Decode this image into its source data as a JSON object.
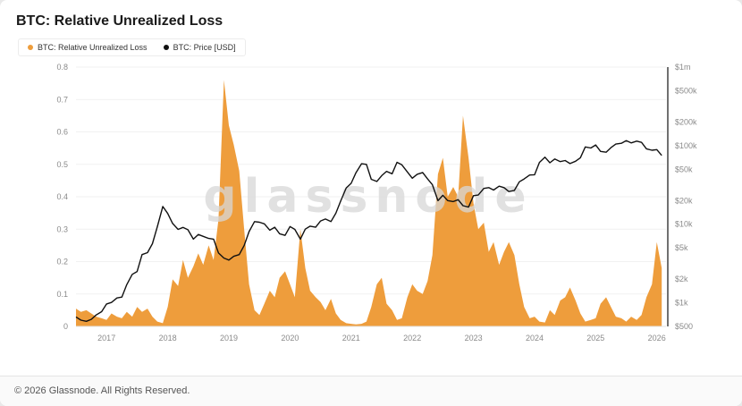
{
  "header": {
    "title": "BTC: Relative Unrealized Loss"
  },
  "legend": {
    "items": [
      {
        "label": "BTC: Relative Unrealized Loss",
        "color": "#EE9D3C"
      },
      {
        "label": "BTC: Price [USD]",
        "color": "#111111"
      }
    ]
  },
  "watermark": {
    "text": "glassnode"
  },
  "footer": {
    "copyright": "© 2026 Glassnode. All Rights Reserved."
  },
  "colors": {
    "area": "#EE9D3C",
    "line": "#111111",
    "grid": "#f1f1f1",
    "axis_line": "#111111",
    "axis_text": "#8a8a8a"
  },
  "chart_data": {
    "type": "area",
    "title": "BTC: Relative Unrealized Loss",
    "x_range": [
      2016.5,
      2026.15
    ],
    "x_ticks": [
      2017,
      2018,
      2019,
      2020,
      2021,
      2022,
      2023,
      2024,
      2025,
      2026
    ],
    "left_axis": {
      "name": "BTC: Relative Unrealized Loss",
      "scale": "linear",
      "min": 0,
      "max": 0.8,
      "ticks": [
        {
          "value": 0,
          "label": "0"
        },
        {
          "value": 0.1,
          "label": "0.1"
        },
        {
          "value": 0.2,
          "label": "0.2"
        },
        {
          "value": 0.3,
          "label": "0.3"
        },
        {
          "value": 0.4,
          "label": "0.4"
        },
        {
          "value": 0.5,
          "label": "0.5"
        },
        {
          "value": 0.6,
          "label": "0.6"
        },
        {
          "value": 0.7,
          "label": "0.7"
        },
        {
          "value": 0.8,
          "label": "0.8"
        }
      ]
    },
    "right_axis": {
      "name": "BTC: Price [USD]",
      "scale": "log",
      "min": 500,
      "max": 1000000,
      "ticks": [
        {
          "value": 1000000,
          "label": "$1m"
        },
        {
          "value": 500000,
          "label": "$500k"
        },
        {
          "value": 200000,
          "label": "$200k"
        },
        {
          "value": 100000,
          "label": "$100k"
        },
        {
          "value": 50000,
          "label": "$50k"
        },
        {
          "value": 20000,
          "label": "$20k"
        },
        {
          "value": 10000,
          "label": "$10k"
        },
        {
          "value": 5000,
          "label": "$5k"
        },
        {
          "value": 2000,
          "label": "$2k"
        },
        {
          "value": 1000,
          "label": "$1k"
        },
        {
          "value": 500,
          "label": "$500"
        }
      ]
    },
    "series": [
      {
        "name": "BTC: Relative Unrealized Loss",
        "type": "area",
        "axis": "left",
        "color": "#EE9D3C"
      },
      {
        "name": "BTC: Price [USD]",
        "type": "line",
        "axis": "right",
        "color": "#111111"
      }
    ],
    "point_format": [
      "year_fraction",
      "relative_unrealized_loss",
      "price_usd"
    ],
    "points": [
      [
        2016.5,
        0.055,
        660
      ],
      [
        2016.58,
        0.045,
        600
      ],
      [
        2016.67,
        0.05,
        580
      ],
      [
        2016.75,
        0.04,
        615
      ],
      [
        2016.83,
        0.03,
        700
      ],
      [
        2016.92,
        0.025,
        770
      ],
      [
        2017.0,
        0.02,
        965
      ],
      [
        2017.08,
        0.04,
        1010
      ],
      [
        2017.17,
        0.03,
        1150
      ],
      [
        2017.25,
        0.025,
        1180
      ],
      [
        2017.33,
        0.045,
        1700
      ],
      [
        2017.42,
        0.03,
        2300
      ],
      [
        2017.5,
        0.06,
        2500
      ],
      [
        2017.58,
        0.045,
        4100
      ],
      [
        2017.67,
        0.055,
        4350
      ],
      [
        2017.75,
        0.03,
        5650
      ],
      [
        2017.83,
        0.015,
        9300
      ],
      [
        2017.92,
        0.01,
        16800
      ],
      [
        2018.0,
        0.06,
        13700
      ],
      [
        2018.08,
        0.145,
        10200
      ],
      [
        2018.17,
        0.125,
        8600
      ],
      [
        2018.25,
        0.205,
        9100
      ],
      [
        2018.33,
        0.15,
        8500
      ],
      [
        2018.42,
        0.185,
        6450
      ],
      [
        2018.5,
        0.225,
        7400
      ],
      [
        2018.58,
        0.19,
        7000
      ],
      [
        2018.67,
        0.25,
        6600
      ],
      [
        2018.75,
        0.205,
        6450
      ],
      [
        2018.83,
        0.33,
        4300
      ],
      [
        2018.92,
        0.76,
        3700
      ],
      [
        2019.0,
        0.62,
        3500
      ],
      [
        2019.08,
        0.56,
        3900
      ],
      [
        2019.17,
        0.48,
        4100
      ],
      [
        2019.25,
        0.3,
        5350
      ],
      [
        2019.33,
        0.13,
        8050
      ],
      [
        2019.42,
        0.05,
        10800
      ],
      [
        2019.5,
        0.035,
        10600
      ],
      [
        2019.58,
        0.07,
        10100
      ],
      [
        2019.67,
        0.11,
        8400
      ],
      [
        2019.75,
        0.09,
        9150
      ],
      [
        2019.83,
        0.15,
        7550
      ],
      [
        2019.92,
        0.17,
        7200
      ],
      [
        2020.0,
        0.13,
        9350
      ],
      [
        2020.08,
        0.09,
        8600
      ],
      [
        2020.17,
        0.3,
        6450
      ],
      [
        2020.25,
        0.18,
        8650
      ],
      [
        2020.33,
        0.11,
        9450
      ],
      [
        2020.42,
        0.09,
        9150
      ],
      [
        2020.5,
        0.075,
        11000
      ],
      [
        2020.58,
        0.05,
        11650
      ],
      [
        2020.67,
        0.085,
        10800
      ],
      [
        2020.75,
        0.04,
        13800
      ],
      [
        2020.83,
        0.02,
        19700
      ],
      [
        2020.92,
        0.01,
        29000
      ],
      [
        2021.0,
        0.008,
        33100
      ],
      [
        2021.08,
        0.006,
        45200
      ],
      [
        2021.17,
        0.008,
        58800
      ],
      [
        2021.25,
        0.015,
        57800
      ],
      [
        2021.33,
        0.06,
        37300
      ],
      [
        2021.42,
        0.13,
        35000
      ],
      [
        2021.5,
        0.15,
        41500
      ],
      [
        2021.58,
        0.07,
        47100
      ],
      [
        2021.67,
        0.05,
        43800
      ],
      [
        2021.75,
        0.02,
        61300
      ],
      [
        2021.83,
        0.025,
        57000
      ],
      [
        2021.92,
        0.09,
        46200
      ],
      [
        2022.0,
        0.13,
        38500
      ],
      [
        2022.08,
        0.11,
        43200
      ],
      [
        2022.17,
        0.1,
        45500
      ],
      [
        2022.25,
        0.14,
        37700
      ],
      [
        2022.33,
        0.22,
        31800
      ],
      [
        2022.42,
        0.47,
        19900
      ],
      [
        2022.5,
        0.52,
        23300
      ],
      [
        2022.58,
        0.4,
        20000
      ],
      [
        2022.67,
        0.43,
        19400
      ],
      [
        2022.75,
        0.4,
        20500
      ],
      [
        2022.83,
        0.65,
        17200
      ],
      [
        2022.92,
        0.52,
        16500
      ],
      [
        2023.0,
        0.38,
        23100
      ],
      [
        2023.08,
        0.3,
        23500
      ],
      [
        2023.17,
        0.32,
        28500
      ],
      [
        2023.25,
        0.23,
        29250
      ],
      [
        2023.33,
        0.26,
        27200
      ],
      [
        2023.42,
        0.19,
        30450
      ],
      [
        2023.5,
        0.23,
        29250
      ],
      [
        2023.58,
        0.26,
        26000
      ],
      [
        2023.67,
        0.22,
        26950
      ],
      [
        2023.75,
        0.13,
        34650
      ],
      [
        2023.83,
        0.06,
        37700
      ],
      [
        2023.92,
        0.025,
        42250
      ],
      [
        2024.0,
        0.03,
        42600
      ],
      [
        2024.08,
        0.015,
        61200
      ],
      [
        2024.17,
        0.012,
        71300
      ],
      [
        2024.25,
        0.05,
        60600
      ],
      [
        2024.33,
        0.035,
        67500
      ],
      [
        2024.42,
        0.08,
        62700
      ],
      [
        2024.5,
        0.09,
        64600
      ],
      [
        2024.58,
        0.12,
        59100
      ],
      [
        2024.67,
        0.08,
        63300
      ],
      [
        2024.75,
        0.04,
        70200
      ],
      [
        2024.83,
        0.015,
        96400
      ],
      [
        2024.92,
        0.02,
        93400
      ],
      [
        2025.0,
        0.025,
        102100
      ],
      [
        2025.08,
        0.07,
        84400
      ],
      [
        2025.17,
        0.09,
        82500
      ],
      [
        2025.25,
        0.06,
        94200
      ],
      [
        2025.33,
        0.03,
        104600
      ],
      [
        2025.42,
        0.025,
        107200
      ],
      [
        2025.5,
        0.015,
        115800
      ],
      [
        2025.58,
        0.03,
        108200
      ],
      [
        2025.67,
        0.02,
        114100
      ],
      [
        2025.75,
        0.035,
        110100
      ],
      [
        2025.83,
        0.09,
        91000
      ],
      [
        2025.92,
        0.13,
        87300
      ],
      [
        2026.0,
        0.26,
        89000
      ],
      [
        2026.08,
        0.18,
        75000
      ]
    ]
  }
}
